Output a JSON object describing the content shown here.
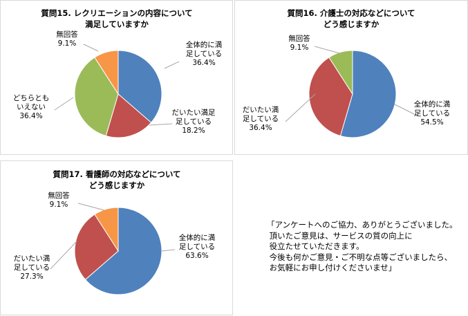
{
  "chart_data": [
    {
      "type": "pie",
      "title": [
        "質問15. レクリエーションの内容について",
        "満足していますか"
      ],
      "slices": [
        {
          "label": [
            "全体的に満",
            "足している"
          ],
          "value": 36.4,
          "pct_label": "36.4%",
          "color": "#4f81bd"
        },
        {
          "label": [
            "だいたい満足",
            "足している"
          ],
          "value": 18.2,
          "pct_label": "18.2%",
          "color": "#c0504d"
        },
        {
          "label": [
            "どちらとも",
            "いえない"
          ],
          "value": 36.4,
          "pct_label": "36.4%",
          "color": "#9bbb59"
        },
        {
          "label": [
            "無回答"
          ],
          "value": 9.1,
          "pct_label": "9.1%",
          "color": "#f79646"
        }
      ]
    },
    {
      "type": "pie",
      "title": [
        "質問16. 介護士の対応などについて",
        "どう感じますか"
      ],
      "slices": [
        {
          "label": [
            "全体的に満",
            "足している"
          ],
          "value": 54.5,
          "pct_label": "54.5%",
          "color": "#4f81bd"
        },
        {
          "label": [
            "だいたい満",
            "足している"
          ],
          "value": 36.4,
          "pct_label": "36.4%",
          "color": "#c0504d"
        },
        {
          "label": [
            "無回答"
          ],
          "value": 9.1,
          "pct_label": "9.1%",
          "color": "#9bbb59"
        }
      ]
    },
    {
      "type": "pie",
      "title": [
        "質問17. 看護師の対応などについて",
        "どう感じますか"
      ],
      "slices": [
        {
          "label": [
            "全体的に満",
            "足している"
          ],
          "value": 63.6,
          "pct_label": "63.6%",
          "color": "#4f81bd"
        },
        {
          "label": [
            "だいたい満",
            "足している"
          ],
          "value": 27.3,
          "pct_label": "27.3%",
          "color": "#c0504d"
        },
        {
          "label": [
            "無回答"
          ],
          "value": 9.1,
          "pct_label": "9.1%",
          "color": "#f79646"
        }
      ]
    }
  ],
  "note": "「アンケートへのご協力、ありがとうございました。\n 頂いたご意見は、サービスの質の向上に\n 役立たせていただきます。\n 今後も何かご意見・ご不明な点等ございましたら、\n お気軽にお申し付けくださいませ」"
}
